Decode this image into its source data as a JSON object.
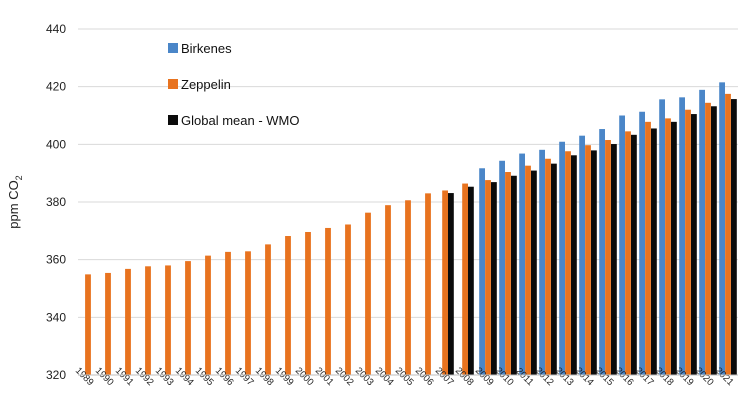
{
  "chart_data": {
    "type": "bar",
    "title": "",
    "xlabel": "",
    "ylabel": "ppm CO",
    "ylabel_subscript": "2",
    "ylim": [
      320,
      440
    ],
    "yticks": [
      320,
      340,
      360,
      380,
      400,
      420,
      440
    ],
    "grid": "horizontal",
    "legend_placement": "top-left-inside",
    "categories": [
      "1989",
      "1990",
      "1991",
      "1992",
      "1993",
      "1994",
      "1995",
      "1996",
      "1997",
      "1998",
      "1999",
      "2000",
      "2001",
      "2002",
      "2003",
      "2004",
      "2005",
      "2006",
      "2007",
      "2008",
      "2009",
      "2010",
      "2011",
      "2012",
      "2013",
      "2014",
      "2015",
      "2016",
      "2017",
      "2018",
      "2019",
      "2020",
      "2021"
    ],
    "series": [
      {
        "name": "Birkenes",
        "color": "#4a86c8",
        "values": [
          null,
          null,
          null,
          null,
          null,
          null,
          null,
          null,
          null,
          null,
          null,
          null,
          null,
          null,
          null,
          null,
          null,
          null,
          null,
          null,
          391.7,
          394.3,
          396.8,
          398.1,
          400.9,
          403.0,
          405.3,
          410.0,
          411.3,
          415.6,
          416.3,
          418.9,
          421.5
        ]
      },
      {
        "name": "Zeppelin",
        "color": "#e8731f",
        "values": [
          354.9,
          355.4,
          356.8,
          357.7,
          358.0,
          359.5,
          361.4,
          362.7,
          362.9,
          365.3,
          368.2,
          369.6,
          371.0,
          372.2,
          376.3,
          378.9,
          380.6,
          383.0,
          384.0,
          386.4,
          387.6,
          390.4,
          392.6,
          395.0,
          397.6,
          399.7,
          401.5,
          404.5,
          407.8,
          409.0,
          412.0,
          414.4,
          417.5
        ]
      },
      {
        "name": "Global mean - WMO",
        "color": "#0b0b0b",
        "values": [
          null,
          null,
          null,
          null,
          null,
          null,
          null,
          null,
          null,
          null,
          null,
          null,
          null,
          null,
          null,
          null,
          null,
          null,
          383.1,
          385.3,
          386.9,
          389.1,
          390.9,
          393.3,
          396.2,
          397.9,
          400.1,
          403.3,
          405.5,
          407.8,
          410.5,
          413.2,
          415.7
        ]
      }
    ]
  }
}
